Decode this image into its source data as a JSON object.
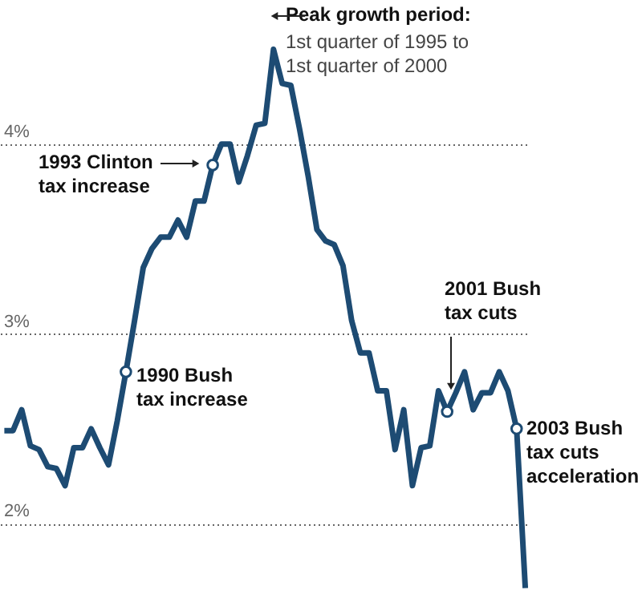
{
  "chart_data": {
    "type": "line",
    "categories": [
      null,
      null,
      null,
      null,
      null,
      null,
      null,
      null,
      null,
      null,
      null,
      null,
      null,
      null,
      null,
      null,
      null,
      null,
      null,
      null,
      null,
      null,
      null,
      null,
      null,
      null,
      null,
      null,
      null,
      null,
      null,
      null,
      null,
      null,
      null,
      null,
      null,
      null,
      null,
      null,
      null,
      null,
      null,
      null,
      null,
      null,
      null,
      null,
      null,
      null,
      null,
      null,
      null,
      null,
      null,
      null,
      null,
      null,
      null,
      null,
      null
    ],
    "series": [
      {
        "color": "#1d4b73",
        "marker": "none",
        "line_style": "solid",
        "values": [
          2.49,
          2.49,
          2.6,
          2.41,
          2.39,
          2.3,
          2.29,
          2.2,
          2.4,
          2.4,
          2.5,
          2.4,
          2.31,
          2.54,
          2.8,
          3.07,
          3.35,
          3.45,
          3.51,
          3.51,
          3.6,
          3.51,
          3.7,
          3.7,
          3.89,
          4.0,
          4.0,
          3.8,
          3.94,
          4.1,
          4.11,
          4.5,
          4.32,
          4.31,
          4.08,
          3.83,
          3.55,
          3.49,
          3.47,
          3.36,
          3.07,
          2.9,
          2.9,
          2.7,
          2.7,
          2.39,
          2.6,
          2.2,
          2.4,
          2.41,
          2.7,
          2.59,
          2.69,
          2.8,
          2.6,
          2.69,
          2.69,
          2.8,
          2.7,
          2.5,
          1.66
        ]
      },
      {
        "type": "scatter",
        "color": "#1d4b73",
        "marker": "circle",
        "values": [
          null,
          null,
          null,
          null,
          null,
          null,
          null,
          null,
          null,
          null,
          null,
          null,
          null,
          null,
          2.8,
          null,
          null,
          null,
          null,
          null,
          null,
          null,
          null,
          null,
          3.89,
          null,
          null,
          null,
          null,
          null,
          null,
          null,
          null,
          null,
          null,
          null,
          null,
          null,
          null,
          null,
          null,
          null,
          null,
          null,
          null,
          null,
          null,
          null,
          null,
          null,
          null,
          2.59,
          null,
          null,
          null,
          null,
          null,
          null,
          null,
          2.5,
          null
        ]
      }
    ],
    "ylim": [
      1.65,
      4.76
    ],
    "yticks": [
      {
        "value": 2,
        "label": "2%"
      },
      {
        "value": 3,
        "label": "3%"
      },
      {
        "value": 4,
        "label": "4%"
      }
    ],
    "grid": "y",
    "tick_labels": "y",
    "annotations": [
      "Peak growth period:",
      "1st quarter of 1995 to\n1st quarter of 2000",
      "1993 Clinton\ntax increase",
      "1990 Bush\ntax increase",
      "2001 Bush\ntax cuts",
      "2003 Bush\ntax cuts\nacceleration"
    ]
  }
}
